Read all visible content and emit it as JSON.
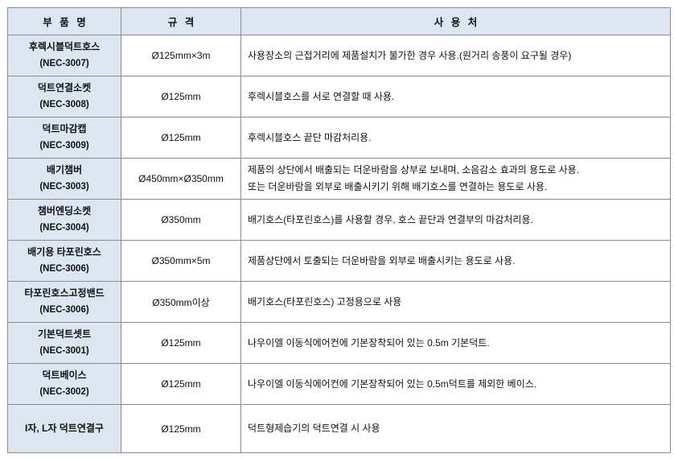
{
  "headers": [
    "부 품 명",
    "규 격",
    "사 용 처"
  ],
  "rows": [
    {
      "name": "후렉시블덕트호스",
      "code": "(NEC-3007)",
      "spec": "Ø125mm×3m",
      "use": [
        "사용장소의 근접거리에 제품설치가 불가한 경우 사용.(원거리 송풍이 요구될 경우)"
      ]
    },
    {
      "name": "덕트연결소켓",
      "code": "(NEC-3008)",
      "spec": "Ø125mm",
      "use": [
        "후렉시블호스를 서로 연결할 때 사용."
      ]
    },
    {
      "name": "덕트마감캡",
      "code": "(NEC-3009)",
      "spec": "Ø125mm",
      "use": [
        "후렉시블호스 끝단 마감처리용."
      ]
    },
    {
      "name": "배기챔버",
      "code": "(NEC-3003)",
      "spec": "Ø450mm×Ø350mm",
      "use": [
        "제품의 상단에서 배출되는 더운바람을 상부로 보내며, 소음감소 효과의 용도로 사용.",
        "또는 더운바람을 외부로 배출시키기 위해 배기호스를 연결하는 용도로 사용."
      ]
    },
    {
      "name": "챔버엔딩소켓",
      "code": "(NEC-3004)",
      "spec": "Ø350mm",
      "use": [
        "배기호스(타포린호스)를 사용할 경우, 호스 끝단과 연결부의 마감처리용."
      ]
    },
    {
      "name": "배기용 타포린호스",
      "code": "(NEC-3006)",
      "spec": "Ø350mm×5m",
      "use": [
        "제품상단에서 토출되는 더운바람을 외부로 배출시키는 용도로 사용."
      ]
    },
    {
      "name": "타포린호스고정밴드",
      "code": "(NEC-3006)",
      "spec": "Ø350mm이상",
      "use": [
        "배기호스(타포린호스) 고정용으로 사용"
      ]
    },
    {
      "name": "기본덕트셋트",
      "code": "(NEC-3001)",
      "spec": "Ø125mm",
      "use": [
        "나우이엘 이동식에어컨에 기본장착되어 있는 0.5m 기본덕트."
      ]
    },
    {
      "name": "덕트베이스",
      "code": "(NEC-3002)",
      "spec": "Ø125mm",
      "use": [
        "나우이엘 이동식에어컨에 기본장착되어 있는 0.5m덕트를 제외한 베이스."
      ]
    },
    {
      "name": "I자, L자 덕트연결구",
      "code": "",
      "spec": "Ø125mm",
      "use": [
        "덕트형제습기의 덕트연결 시 사용"
      ]
    }
  ],
  "colors": {
    "header_bg": "#dce6f1",
    "border": "#8c8c8c"
  }
}
